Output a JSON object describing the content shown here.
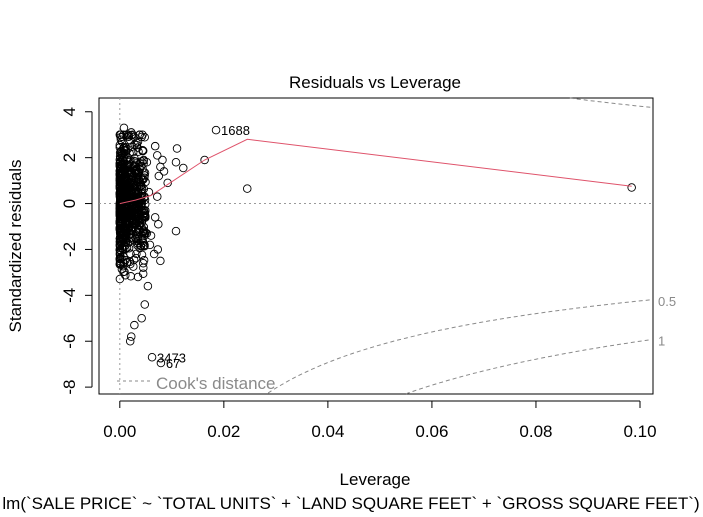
{
  "chart_data": {
    "type": "scatter",
    "title": "Residuals vs Leverage",
    "xlabel": "Leverage",
    "ylabel": "Standardized residuals",
    "subtitle": "lm(`SALE PRICE` ~ `TOTAL UNITS` + `LAND SQUARE FEET` + `GROSS SQUARE FEET`)",
    "xlim": [
      -0.004,
      0.1025
    ],
    "ylim": [
      -8.3,
      4.6
    ],
    "x_ticks": [
      0.0,
      0.02,
      0.04,
      0.06,
      0.08,
      0.1
    ],
    "x_tick_labels": [
      "0.00",
      "0.02",
      "0.04",
      "0.06",
      "0.08",
      "0.10"
    ],
    "y_ticks": [
      -8,
      -6,
      -4,
      -2,
      0,
      2,
      4
    ],
    "y_tick_labels": [
      "-8",
      "-6",
      "-4",
      "-2",
      "0",
      "2",
      "4"
    ],
    "legend": {
      "label": "Cook's distance",
      "position": "bottom-left"
    },
    "colors": {
      "points": "#000000",
      "smooth": "#df536b",
      "cook": "#8a8a8a",
      "zero_line": "#9a9a9a"
    },
    "points": [
      {
        "x": 0.0185,
        "y": 3.2,
        "label": "1688"
      },
      {
        "x": 0.0984,
        "y": 0.7
      },
      {
        "x": 0.0245,
        "y": 0.65
      },
      {
        "x": 0.0163,
        "y": 1.9
      },
      {
        "x": 0.0122,
        "y": 1.55
      },
      {
        "x": 0.0108,
        "y": 1.8
      },
      {
        "x": 0.011,
        "y": 2.4
      },
      {
        "x": 0.0092,
        "y": 0.9
      },
      {
        "x": 0.0108,
        "y": -1.2
      },
      {
        "x": 0.0078,
        "y": -2.5
      },
      {
        "x": 0.0073,
        "y": -2.0
      },
      {
        "x": 0.0066,
        "y": -2.2
      },
      {
        "x": 0.0058,
        "y": -1.8
      },
      {
        "x": 0.0068,
        "y": 2.5
      },
      {
        "x": 0.0072,
        "y": 2.1
      },
      {
        "x": 0.0078,
        "y": 1.6
      },
      {
        "x": 0.0075,
        "y": 1.2
      },
      {
        "x": 0.0082,
        "y": 1.9
      },
      {
        "x": 0.0085,
        "y": 1.4
      },
      {
        "x": 0.0072,
        "y": 0.3
      },
      {
        "x": 0.0068,
        "y": -0.6
      },
      {
        "x": 0.0074,
        "y": -0.9
      },
      {
        "x": 0.006,
        "y": -1.4
      },
      {
        "x": 0.0062,
        "y": -6.7,
        "label": "3473"
      },
      {
        "x": 0.0079,
        "y": -6.95,
        "label": "67"
      },
      {
        "x": 0.0054,
        "y": -3.6
      },
      {
        "x": 0.0048,
        "y": -4.4
      },
      {
        "x": 0.0042,
        "y": -5.0
      },
      {
        "x": 0.0028,
        "y": -5.3
      },
      {
        "x": 0.0022,
        "y": -5.8
      },
      {
        "x": 0.002,
        "y": -6.0
      },
      {
        "x": 0.0035,
        "y": -3.2
      },
      {
        "x": 0.0045,
        "y": -2.6
      },
      {
        "x": 0.0052,
        "y": -1.3
      },
      {
        "x": 0.0045,
        "y": 2.3
      },
      {
        "x": 0.0052,
        "y": 1.8
      },
      {
        "x": 0.0035,
        "y": 2.7
      },
      {
        "x": 0.0028,
        "y": 2.9
      },
      {
        "x": 0.0022,
        "y": 3.1
      },
      {
        "x": 0.0008,
        "y": 3.3
      },
      {
        "x": 0.0042,
        "y": 2.9
      },
      {
        "x": 0.0056,
        "y": 0.5
      },
      {
        "x": 0.0049,
        "y": -0.3
      }
    ],
    "cloud": {
      "description_count": 700,
      "x_max": 0.005,
      "y_min": -5.0,
      "y_max": 3.0
    },
    "smooth_line": [
      {
        "x": 0.0,
        "y": 0.0
      },
      {
        "x": 0.003,
        "y": 0.15
      },
      {
        "x": 0.006,
        "y": 0.35
      },
      {
        "x": 0.009,
        "y": 0.8
      },
      {
        "x": 0.0163,
        "y": 1.9
      },
      {
        "x": 0.0245,
        "y": 2.8
      },
      {
        "x": 0.0984,
        "y": 0.75
      }
    ],
    "cook_contours": [
      {
        "label": "0.5",
        "level": 0.5
      },
      {
        "label": "1",
        "level": 1.0
      }
    ],
    "cook_p": 4
  }
}
